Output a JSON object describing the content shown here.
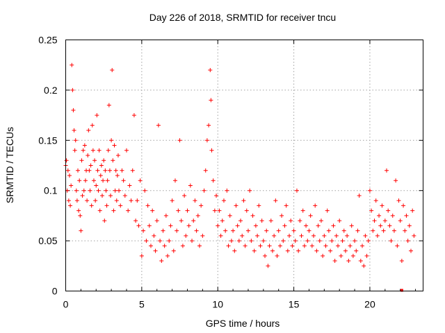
{
  "chart_data": {
    "type": "scatter",
    "title": "Day 226 of 2018, SRMTID for receiver tncu",
    "xlabel": "GPS time / hours",
    "ylabel": "SRMTID / TECUs",
    "xlim": [
      0,
      23.5
    ],
    "ylim": [
      0,
      0.25
    ],
    "x_ticks": [
      "0",
      "5",
      "10",
      "15",
      "20"
    ],
    "y_ticks": [
      "0",
      "0.05",
      "0.1",
      "0.15",
      "0.2",
      "0.25"
    ],
    "grid": true,
    "marker": "+",
    "color": "#ff0000",
    "series": [
      {
        "name": "SRMTID",
        "points": [
          [
            0.0,
            0.125
          ],
          [
            0.05,
            0.13
          ],
          [
            0.1,
            0.1
          ],
          [
            0.15,
            0.12
          ],
          [
            0.2,
            0.09
          ],
          [
            0.25,
            0.115
          ],
          [
            0.3,
            0.085
          ],
          [
            0.35,
            0.105
          ],
          [
            0.4,
            0.225
          ],
          [
            0.45,
            0.2
          ],
          [
            0.5,
            0.18
          ],
          [
            0.55,
            0.16
          ],
          [
            0.6,
            0.14
          ],
          [
            0.65,
            0.15
          ],
          [
            0.7,
            0.1
          ],
          [
            0.75,
            0.09
          ],
          [
            0.8,
            0.12
          ],
          [
            0.85,
            0.08
          ],
          [
            0.9,
            0.11
          ],
          [
            0.95,
            0.075
          ],
          [
            1.0,
            0.06
          ],
          [
            1.05,
            0.13
          ],
          [
            1.1,
            0.095
          ],
          [
            1.15,
            0.14
          ],
          [
            1.2,
            0.1
          ],
          [
            1.25,
            0.145
          ],
          [
            1.3,
            0.11
          ],
          [
            1.35,
            0.12
          ],
          [
            1.4,
            0.09
          ],
          [
            1.45,
            0.135
          ],
          [
            1.5,
            0.16
          ],
          [
            1.55,
            0.12
          ],
          [
            1.6,
            0.1
          ],
          [
            1.65,
            0.125
          ],
          [
            1.7,
            0.085
          ],
          [
            1.75,
            0.165
          ],
          [
            1.8,
            0.14
          ],
          [
            1.85,
            0.11
          ],
          [
            1.9,
            0.13
          ],
          [
            1.95,
            0.09
          ],
          [
            2.0,
            0.105
          ],
          [
            2.05,
            0.175
          ],
          [
            2.1,
            0.12
          ],
          [
            2.15,
            0.1
          ],
          [
            2.2,
            0.14
          ],
          [
            2.25,
            0.08
          ],
          [
            2.3,
            0.115
          ],
          [
            2.35,
            0.125
          ],
          [
            2.4,
            0.095
          ],
          [
            2.45,
            0.11
          ],
          [
            2.5,
            0.13
          ],
          [
            2.55,
            0.07
          ],
          [
            2.6,
            0.12
          ],
          [
            2.65,
            0.1
          ],
          [
            2.7,
            0.085
          ],
          [
            2.75,
            0.11
          ],
          [
            2.8,
            0.14
          ],
          [
            2.85,
            0.185
          ],
          [
            2.9,
            0.12
          ],
          [
            2.95,
            0.095
          ],
          [
            3.0,
            0.15
          ],
          [
            3.05,
            0.22
          ],
          [
            3.1,
            0.13
          ],
          [
            3.15,
            0.08
          ],
          [
            3.2,
            0.145
          ],
          [
            3.25,
            0.1
          ],
          [
            3.3,
            0.12
          ],
          [
            3.35,
            0.09
          ],
          [
            3.4,
            0.115
          ],
          [
            3.45,
            0.135
          ],
          [
            3.5,
            0.1
          ],
          [
            3.6,
            0.085
          ],
          [
            3.7,
            0.12
          ],
          [
            3.8,
            0.11
          ],
          [
            3.9,
            0.095
          ],
          [
            4.0,
            0.14
          ],
          [
            4.1,
            0.08
          ],
          [
            4.2,
            0.105
          ],
          [
            4.3,
            0.09
          ],
          [
            4.4,
            0.12
          ],
          [
            4.5,
            0.175
          ],
          [
            4.6,
            0.07
          ],
          [
            4.7,
            0.09
          ],
          [
            4.8,
            0.065
          ],
          [
            4.9,
            0.11
          ],
          [
            5.0,
            0.035
          ],
          [
            5.1,
            0.06
          ],
          [
            5.2,
            0.1
          ],
          [
            5.3,
            0.05
          ],
          [
            5.4,
            0.085
          ],
          [
            5.5,
            0.065
          ],
          [
            5.6,
            0.045
          ],
          [
            5.7,
            0.08
          ],
          [
            5.8,
            0.055
          ],
          [
            5.9,
            0.04
          ],
          [
            6.0,
            0.07
          ],
          [
            6.1,
            0.165
          ],
          [
            6.2,
            0.05
          ],
          [
            6.3,
            0.03
          ],
          [
            6.4,
            0.06
          ],
          [
            6.5,
            0.045
          ],
          [
            6.6,
            0.075
          ],
          [
            6.7,
            0.035
          ],
          [
            6.8,
            0.05
          ],
          [
            6.9,
            0.065
          ],
          [
            7.0,
            0.09
          ],
          [
            7.1,
            0.04
          ],
          [
            7.2,
            0.11
          ],
          [
            7.3,
            0.06
          ],
          [
            7.4,
            0.08
          ],
          [
            7.5,
            0.15
          ],
          [
            7.6,
            0.07
          ],
          [
            7.7,
            0.045
          ],
          [
            7.8,
            0.095
          ],
          [
            7.9,
            0.055
          ],
          [
            8.0,
            0.08
          ],
          [
            8.1,
            0.065
          ],
          [
            8.2,
            0.105
          ],
          [
            8.3,
            0.05
          ],
          [
            8.4,
            0.07
          ],
          [
            8.5,
            0.09
          ],
          [
            8.6,
            0.06
          ],
          [
            8.7,
            0.075
          ],
          [
            8.8,
            0.045
          ],
          [
            8.9,
            0.085
          ],
          [
            9.0,
            0.055
          ],
          [
            9.1,
            0.1
          ],
          [
            9.2,
            0.12
          ],
          [
            9.3,
            0.15
          ],
          [
            9.4,
            0.165
          ],
          [
            9.5,
            0.22
          ],
          [
            9.55,
            0.19
          ],
          [
            9.6,
            0.14
          ],
          [
            9.7,
            0.11
          ],
          [
            9.8,
            0.08
          ],
          [
            9.9,
            0.095
          ],
          [
            10.0,
            0.065
          ],
          [
            10.1,
            0.08
          ],
          [
            10.2,
            0.055
          ],
          [
            10.3,
            0.07
          ],
          [
            10.4,
            0.09
          ],
          [
            10.5,
            0.06
          ],
          [
            10.6,
            0.1
          ],
          [
            10.7,
            0.045
          ],
          [
            10.8,
            0.075
          ],
          [
            10.9,
            0.05
          ],
          [
            11.0,
            0.06
          ],
          [
            11.1,
            0.04
          ],
          [
            11.2,
            0.085
          ],
          [
            11.3,
            0.065
          ],
          [
            11.4,
            0.05
          ],
          [
            11.5,
            0.07
          ],
          [
            11.6,
            0.055
          ],
          [
            11.7,
            0.09
          ],
          [
            11.8,
            0.045
          ],
          [
            11.9,
            0.08
          ],
          [
            12.0,
            0.06
          ],
          [
            12.1,
            0.1
          ],
          [
            12.2,
            0.05
          ],
          [
            12.3,
            0.075
          ],
          [
            12.4,
            0.04
          ],
          [
            12.5,
            0.065
          ],
          [
            12.6,
            0.055
          ],
          [
            12.7,
            0.085
          ],
          [
            12.8,
            0.045
          ],
          [
            12.9,
            0.07
          ],
          [
            13.0,
            0.05
          ],
          [
            13.1,
            0.035
          ],
          [
            13.2,
            0.06
          ],
          [
            13.3,
            0.025
          ],
          [
            13.4,
            0.045
          ],
          [
            13.5,
            0.07
          ],
          [
            13.6,
            0.04
          ],
          [
            13.7,
            0.055
          ],
          [
            13.8,
            0.09
          ],
          [
            13.9,
            0.035
          ],
          [
            14.0,
            0.06
          ],
          [
            14.1,
            0.045
          ],
          [
            14.2,
            0.075
          ],
          [
            14.3,
            0.05
          ],
          [
            14.4,
            0.065
          ],
          [
            14.5,
            0.085
          ],
          [
            14.6,
            0.04
          ],
          [
            14.7,
            0.055
          ],
          [
            14.8,
            0.07
          ],
          [
            14.9,
            0.045
          ],
          [
            15.0,
            0.06
          ],
          [
            15.1,
            0.05
          ],
          [
            15.2,
            0.1
          ],
          [
            15.3,
            0.04
          ],
          [
            15.4,
            0.07
          ],
          [
            15.5,
            0.055
          ],
          [
            15.6,
            0.08
          ],
          [
            15.7,
            0.045
          ],
          [
            15.8,
            0.065
          ],
          [
            15.9,
            0.05
          ],
          [
            16.0,
            0.06
          ],
          [
            16.1,
            0.075
          ],
          [
            16.2,
            0.045
          ],
          [
            16.3,
            0.055
          ],
          [
            16.4,
            0.085
          ],
          [
            16.5,
            0.04
          ],
          [
            16.6,
            0.065
          ],
          [
            16.7,
            0.05
          ],
          [
            16.8,
            0.07
          ],
          [
            16.9,
            0.035
          ],
          [
            17.0,
            0.055
          ],
          [
            17.1,
            0.045
          ],
          [
            17.2,
            0.08
          ],
          [
            17.3,
            0.06
          ],
          [
            17.4,
            0.04
          ],
          [
            17.5,
            0.05
          ],
          [
            17.6,
            0.065
          ],
          [
            17.7,
            0.03
          ],
          [
            17.8,
            0.055
          ],
          [
            17.9,
            0.045
          ],
          [
            18.0,
            0.07
          ],
          [
            18.1,
            0.035
          ],
          [
            18.2,
            0.05
          ],
          [
            18.3,
            0.06
          ],
          [
            18.4,
            0.04
          ],
          [
            18.5,
            0.055
          ],
          [
            18.6,
            0.03
          ],
          [
            18.7,
            0.045
          ],
          [
            18.8,
            0.065
          ],
          [
            18.9,
            0.035
          ],
          [
            19.0,
            0.05
          ],
          [
            19.1,
            0.04
          ],
          [
            19.2,
            0.06
          ],
          [
            19.3,
            0.095
          ],
          [
            19.4,
            0.03
          ],
          [
            19.5,
            0.045
          ],
          [
            19.6,
            0.025
          ],
          [
            19.7,
            0.055
          ],
          [
            19.8,
            0.035
          ],
          [
            19.9,
            0.05
          ],
          [
            20.0,
            0.1
          ],
          [
            20.1,
            0.08
          ],
          [
            20.2,
            0.06
          ],
          [
            20.3,
            0.07
          ],
          [
            20.4,
            0.09
          ],
          [
            20.5,
            0.055
          ],
          [
            20.6,
            0.075
          ],
          [
            20.7,
            0.065
          ],
          [
            20.8,
            0.085
          ],
          [
            20.9,
            0.06
          ],
          [
            21.0,
            0.07
          ],
          [
            21.1,
            0.12
          ],
          [
            21.2,
            0.08
          ],
          [
            21.3,
            0.065
          ],
          [
            21.4,
            0.05
          ],
          [
            21.5,
            0.075
          ],
          [
            21.6,
            0.06
          ],
          [
            21.7,
            0.11
          ],
          [
            21.8,
            0.045
          ],
          [
            21.9,
            0.09
          ],
          [
            22.0,
            0.07
          ],
          [
            22.1,
            0.03
          ],
          [
            22.2,
            0.085
          ],
          [
            22.3,
            0.06
          ],
          [
            22.4,
            0.075
          ],
          [
            22.5,
            0.05
          ],
          [
            22.6,
            0.065
          ],
          [
            22.7,
            0.04
          ],
          [
            22.8,
            0.08
          ],
          [
            22.9,
            0.055
          ]
        ]
      }
    ],
    "marker_zero": [
      22.1,
      0.0
    ]
  }
}
